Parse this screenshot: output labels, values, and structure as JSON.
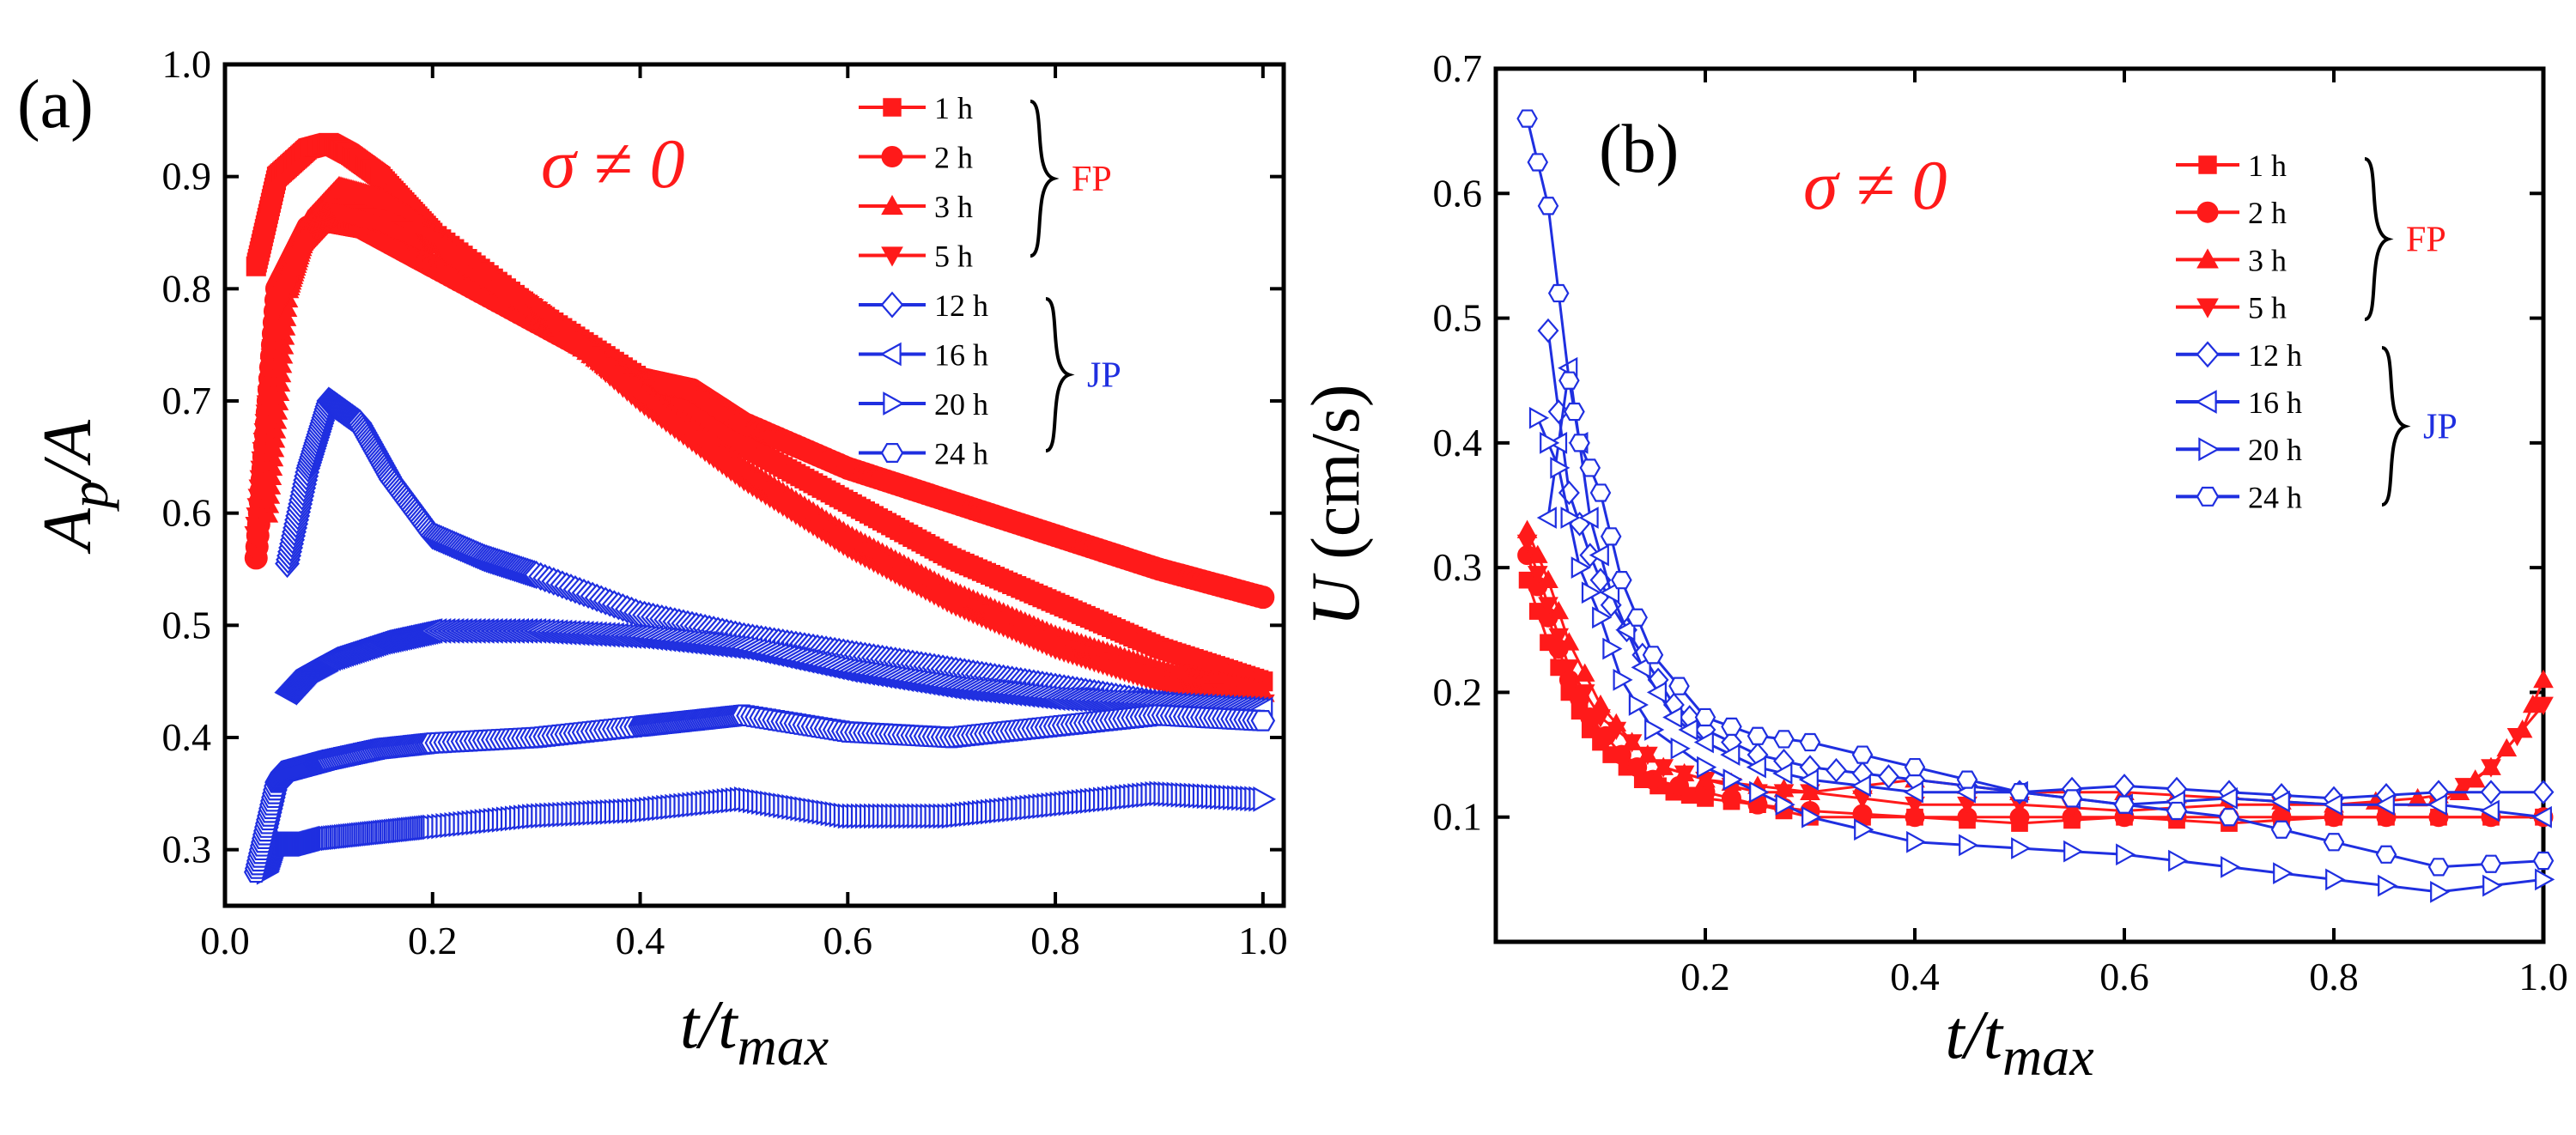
{
  "panels": {
    "a": {
      "letter": "(a)",
      "annotation": "σ ≠ 0"
    },
    "b": {
      "letter": "(b)",
      "annotation": "σ ≠ 0"
    }
  },
  "colors": {
    "fp": "#ff1a1a",
    "jp": "#1f2fe0",
    "axis": "#000000"
  },
  "groups": {
    "fp_label": "FP",
    "jp_label": "JP"
  },
  "chart_data": [
    {
      "id": "a",
      "type": "scatter",
      "title": "",
      "xlabel": {
        "main": "t/t",
        "sub": "max"
      },
      "ylabel": {
        "main": "A",
        "sub": "p",
        "tail": "/A"
      },
      "xlim": [
        0.0,
        1.02
      ],
      "ylim": [
        0.25,
        1.0
      ],
      "xticks": [
        0.0,
        0.2,
        0.4,
        0.6,
        0.8,
        1.0
      ],
      "xtick_labels": [
        "0.0",
        "0.2",
        "0.4",
        "0.6",
        "0.8",
        "1.0"
      ],
      "yticks": [
        0.3,
        0.4,
        0.5,
        0.6,
        0.7,
        0.8,
        0.9,
        1.0
      ],
      "ytick_labels": [
        "0.3",
        "0.4",
        "0.5",
        "0.6",
        "0.7",
        "0.8",
        "0.9",
        "1.0"
      ],
      "legend_position": "top-right",
      "series": [
        {
          "name": "1 h",
          "group": "FP",
          "marker": "square",
          "filled": true,
          "x": [
            0.03,
            0.05,
            0.08,
            0.1,
            0.12,
            0.15,
            0.2,
            0.3,
            0.4,
            0.5,
            0.6,
            0.7,
            0.8,
            0.9,
            1.0
          ],
          "y": [
            0.82,
            0.9,
            0.925,
            0.93,
            0.92,
            0.9,
            0.85,
            0.78,
            0.72,
            0.66,
            0.61,
            0.56,
            0.52,
            0.48,
            0.45
          ]
        },
        {
          "name": "2 h",
          "group": "FP",
          "marker": "circle",
          "filled": true,
          "x": [
            0.03,
            0.05,
            0.08,
            0.1,
            0.13,
            0.2,
            0.3,
            0.4,
            0.45,
            0.5,
            0.6,
            0.7,
            0.8,
            0.9,
            1.0
          ],
          "y": [
            0.56,
            0.8,
            0.855,
            0.86,
            0.855,
            0.82,
            0.77,
            0.72,
            0.71,
            0.68,
            0.64,
            0.61,
            0.58,
            0.55,
            0.525
          ]
        },
        {
          "name": "3 h",
          "group": "FP",
          "marker": "triangle-up",
          "filled": true,
          "x": [
            0.04,
            0.06,
            0.08,
            0.11,
            0.15,
            0.2,
            0.3,
            0.4,
            0.5,
            0.6,
            0.7,
            0.8,
            0.9,
            1.0
          ],
          "y": [
            0.6,
            0.8,
            0.86,
            0.89,
            0.88,
            0.85,
            0.78,
            0.71,
            0.64,
            0.58,
            0.53,
            0.49,
            0.46,
            0.44
          ]
        },
        {
          "name": "5 h",
          "group": "FP",
          "marker": "triangle-down",
          "filled": true,
          "x": [
            0.03,
            0.05,
            0.08,
            0.11,
            0.15,
            0.2,
            0.3,
            0.4,
            0.5,
            0.6,
            0.7,
            0.8,
            0.9,
            1.0
          ],
          "y": [
            0.58,
            0.78,
            0.84,
            0.87,
            0.86,
            0.84,
            0.78,
            0.7,
            0.63,
            0.57,
            0.52,
            0.48,
            0.45,
            0.43
          ]
        },
        {
          "name": "12 h",
          "group": "JP",
          "marker": "diamond",
          "filled": false,
          "x": [
            0.06,
            0.08,
            0.1,
            0.13,
            0.16,
            0.2,
            0.25,
            0.3,
            0.4,
            0.5,
            0.6,
            0.7,
            0.8,
            0.9,
            0.97
          ],
          "y": [
            0.555,
            0.64,
            0.7,
            0.68,
            0.63,
            0.58,
            0.56,
            0.545,
            0.51,
            0.49,
            0.475,
            0.46,
            0.445,
            0.43,
            0.42
          ]
        },
        {
          "name": "16 h",
          "group": "JP",
          "marker": "triangle-left",
          "filled": false,
          "x": [
            0.06,
            0.08,
            0.1,
            0.15,
            0.2,
            0.3,
            0.4,
            0.5,
            0.6,
            0.7,
            0.8,
            0.9,
            1.0
          ],
          "y": [
            0.44,
            0.46,
            0.47,
            0.485,
            0.495,
            0.495,
            0.49,
            0.48,
            0.46,
            0.445,
            0.435,
            0.43,
            0.425
          ]
        },
        {
          "name": "20 h",
          "group": "JP",
          "marker": "triangle-right",
          "filled": false,
          "x": [
            0.04,
            0.05,
            0.06,
            0.08,
            0.1,
            0.15,
            0.2,
            0.3,
            0.4,
            0.5,
            0.6,
            0.7,
            0.8,
            0.9,
            1.0
          ],
          "y": [
            0.28,
            0.31,
            0.305,
            0.305,
            0.31,
            0.315,
            0.32,
            0.33,
            0.335,
            0.345,
            0.33,
            0.33,
            0.34,
            0.35,
            0.345
          ]
        },
        {
          "name": "24 h",
          "group": "JP",
          "marker": "hexagon",
          "filled": false,
          "x": [
            0.03,
            0.05,
            0.06,
            0.08,
            0.1,
            0.15,
            0.2,
            0.3,
            0.4,
            0.45,
            0.5,
            0.6,
            0.7,
            0.8,
            0.9,
            1.0
          ],
          "y": [
            0.28,
            0.36,
            0.37,
            0.375,
            0.38,
            0.39,
            0.395,
            0.4,
            0.41,
            0.415,
            0.42,
            0.405,
            0.4,
            0.41,
            0.42,
            0.415
          ]
        }
      ]
    },
    {
      "id": "b",
      "type": "scatter",
      "title": "",
      "xlabel": {
        "main": "t/t",
        "sub": "max"
      },
      "ylabel": {
        "main": "U",
        "tail": " (cm/s)"
      },
      "xlim": [
        0.0,
        1.0
      ],
      "ylim": [
        0.0,
        0.7
      ],
      "xticks": [
        0.2,
        0.4,
        0.6,
        0.8,
        1.0
      ],
      "xtick_labels": [
        "0.2",
        "0.4",
        "0.6",
        "0.8",
        "1.0"
      ],
      "yticks": [
        0.1,
        0.2,
        0.3,
        0.4,
        0.5,
        0.6,
        0.7
      ],
      "ytick_labels": [
        "0.1",
        "0.2",
        "0.3",
        "0.4",
        "0.5",
        "0.6",
        "0.7"
      ],
      "legend_position": "top-right",
      "series": [
        {
          "name": "1 h",
          "group": "FP",
          "marker": "square",
          "filled": true,
          "x": [
            0.03,
            0.05,
            0.07,
            0.09,
            0.11,
            0.14,
            0.17,
            0.2,
            0.25,
            0.3,
            0.4,
            0.5,
            0.6,
            0.7,
            0.8,
            0.9,
            1.0
          ],
          "y": [
            0.29,
            0.24,
            0.2,
            0.17,
            0.15,
            0.13,
            0.12,
            0.115,
            0.11,
            0.1,
            0.1,
            0.095,
            0.1,
            0.095,
            0.1,
            0.1,
            0.1
          ]
        },
        {
          "name": "2 h",
          "group": "FP",
          "marker": "circle",
          "filled": true,
          "x": [
            0.03,
            0.05,
            0.07,
            0.09,
            0.12,
            0.15,
            0.2,
            0.25,
            0.3,
            0.4,
            0.5,
            0.6,
            0.7,
            0.8,
            0.9,
            1.0
          ],
          "y": [
            0.31,
            0.26,
            0.21,
            0.18,
            0.15,
            0.13,
            0.12,
            0.11,
            0.105,
            0.1,
            0.1,
            0.1,
            0.1,
            0.1,
            0.1,
            0.1
          ]
        },
        {
          "name": "3 h",
          "group": "FP",
          "marker": "triangle-up",
          "filled": true,
          "x": [
            0.03,
            0.05,
            0.07,
            0.1,
            0.13,
            0.16,
            0.2,
            0.25,
            0.3,
            0.4,
            0.5,
            0.6,
            0.7,
            0.8,
            0.88,
            0.92,
            0.95,
            0.98,
            1.0
          ],
          "y": [
            0.33,
            0.29,
            0.24,
            0.19,
            0.16,
            0.14,
            0.13,
            0.125,
            0.12,
            0.13,
            0.12,
            0.12,
            0.115,
            0.11,
            0.115,
            0.12,
            0.14,
            0.17,
            0.21
          ]
        },
        {
          "name": "5 h",
          "group": "FP",
          "marker": "triangle-down",
          "filled": true,
          "x": [
            0.03,
            0.05,
            0.07,
            0.1,
            0.13,
            0.16,
            0.2,
            0.25,
            0.3,
            0.4,
            0.5,
            0.6,
            0.7,
            0.8,
            0.9,
            0.95,
            1.0
          ],
          "y": [
            0.32,
            0.27,
            0.22,
            0.18,
            0.16,
            0.14,
            0.13,
            0.12,
            0.12,
            0.11,
            0.11,
            0.105,
            0.11,
            0.11,
            0.11,
            0.14,
            0.19
          ]
        },
        {
          "name": "12 h",
          "group": "JP",
          "marker": "diamond",
          "filled": false,
          "x": [
            0.05,
            0.07,
            0.09,
            0.11,
            0.14,
            0.17,
            0.2,
            0.25,
            0.3,
            0.35,
            0.4,
            0.5,
            0.6,
            0.7,
            0.8,
            0.9,
            1.0
          ],
          "y": [
            0.49,
            0.36,
            0.31,
            0.27,
            0.23,
            0.19,
            0.17,
            0.15,
            0.14,
            0.135,
            0.13,
            0.12,
            0.125,
            0.12,
            0.115,
            0.12,
            0.12
          ]
        },
        {
          "name": "16 h",
          "group": "JP",
          "marker": "triangle-left",
          "filled": false,
          "x": [
            0.05,
            0.07,
            0.09,
            0.11,
            0.14,
            0.17,
            0.2,
            0.25,
            0.3,
            0.4,
            0.5,
            0.6,
            0.7,
            0.8,
            0.9,
            1.0
          ],
          "y": [
            0.34,
            0.46,
            0.34,
            0.28,
            0.22,
            0.18,
            0.16,
            0.14,
            0.13,
            0.12,
            0.12,
            0.11,
            0.115,
            0.11,
            0.11,
            0.1
          ]
        },
        {
          "name": "20 h",
          "group": "JP",
          "marker": "triangle-right",
          "filled": false,
          "x": [
            0.04,
            0.06,
            0.08,
            0.1,
            0.12,
            0.15,
            0.2,
            0.25,
            0.3,
            0.4,
            0.5,
            0.6,
            0.7,
            0.8,
            0.9,
            1.0
          ],
          "y": [
            0.42,
            0.38,
            0.3,
            0.26,
            0.21,
            0.17,
            0.14,
            0.12,
            0.1,
            0.08,
            0.075,
            0.07,
            0.06,
            0.05,
            0.04,
            0.05
          ]
        },
        {
          "name": "24 h",
          "group": "JP",
          "marker": "hexagon",
          "filled": false,
          "x": [
            0.03,
            0.05,
            0.07,
            0.08,
            0.1,
            0.12,
            0.15,
            0.2,
            0.25,
            0.3,
            0.4,
            0.5,
            0.6,
            0.7,
            0.8,
            0.9,
            1.0
          ],
          "y": [
            0.66,
            0.59,
            0.45,
            0.4,
            0.36,
            0.29,
            0.23,
            0.18,
            0.165,
            0.16,
            0.14,
            0.12,
            0.11,
            0.1,
            0.08,
            0.06,
            0.065
          ]
        }
      ]
    }
  ]
}
